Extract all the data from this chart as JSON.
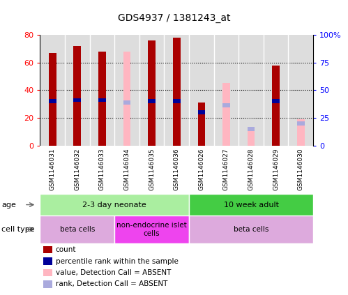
{
  "title": "GDS4937 / 1381243_at",
  "samples": [
    "GSM1146031",
    "GSM1146032",
    "GSM1146033",
    "GSM1146034",
    "GSM1146035",
    "GSM1146036",
    "GSM1146026",
    "GSM1146027",
    "GSM1146028",
    "GSM1146029",
    "GSM1146030"
  ],
  "count_values": [
    67,
    72,
    68,
    0,
    76,
    78,
    31,
    0,
    0,
    58,
    0
  ],
  "percentile_values": [
    40,
    41,
    41,
    0,
    40,
    40,
    30,
    0,
    0,
    40,
    0
  ],
  "absent_value_values": [
    0,
    0,
    0,
    68,
    0,
    0,
    0,
    45,
    13,
    0,
    19
  ],
  "absent_rank_values": [
    0,
    0,
    0,
    39,
    0,
    0,
    0,
    36,
    15,
    0,
    20
  ],
  "count_color": "#AA0000",
  "percentile_color": "#000099",
  "absent_value_color": "#FFB6C1",
  "absent_rank_color": "#AAAADD",
  "ylim": [
    0,
    80
  ],
  "y2lim": [
    0,
    100
  ],
  "yticks": [
    0,
    20,
    40,
    60,
    80
  ],
  "ytick_labels": [
    "0",
    "20",
    "40",
    "60",
    "80"
  ],
  "y2ticks": [
    0,
    25,
    50,
    75,
    100
  ],
  "y2tick_labels": [
    "0",
    "25",
    "50",
    "75",
    "100%"
  ],
  "grid_lines": [
    20,
    40,
    60
  ],
  "age_groups": [
    {
      "label": "2-3 day neonate",
      "start": 0,
      "end": 5,
      "color": "#AAEEA0"
    },
    {
      "label": "10 week adult",
      "start": 6,
      "end": 10,
      "color": "#44CC44"
    }
  ],
  "cell_type_groups": [
    {
      "label": "beta cells",
      "start": 0,
      "end": 2,
      "color": "#DDAADD"
    },
    {
      "label": "non-endocrine islet\ncells",
      "start": 3,
      "end": 5,
      "color": "#EE44EE"
    },
    {
      "label": "beta cells",
      "start": 6,
      "end": 10,
      "color": "#DDAADD"
    }
  ],
  "legend_items": [
    {
      "label": "count",
      "color": "#AA0000"
    },
    {
      "label": "percentile rank within the sample",
      "color": "#000099"
    },
    {
      "label": "value, Detection Call = ABSENT",
      "color": "#FFB6C1"
    },
    {
      "label": "rank, Detection Call = ABSENT",
      "color": "#AAAADD"
    }
  ],
  "bar_width": 0.3
}
